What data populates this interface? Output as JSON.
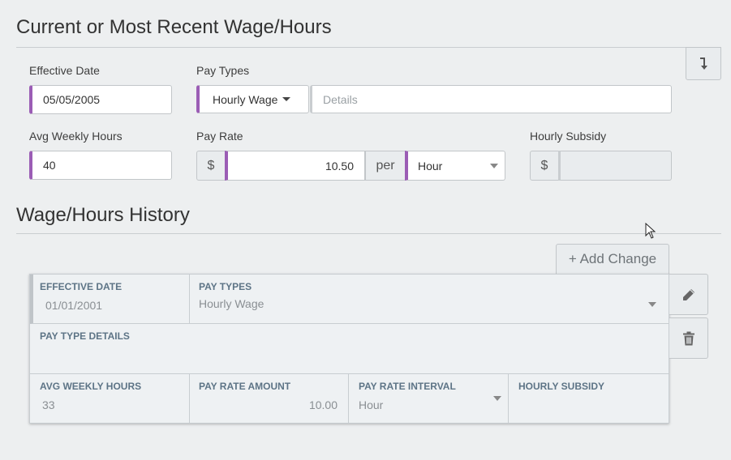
{
  "current": {
    "title": "Current or Most Recent Wage/Hours",
    "effective_date_label": "Effective Date",
    "effective_date_value": "05/05/2005",
    "pay_types_label": "Pay Types",
    "pay_type_selected": "Hourly Wage",
    "details_placeholder": "Details",
    "avg_weekly_hours_label": "Avg Weekly Hours",
    "avg_weekly_hours_value": "40",
    "pay_rate_label": "Pay Rate",
    "currency_symbol": "$",
    "pay_rate_value": "10.50",
    "per_label": "per",
    "interval_selected": "Hour",
    "hourly_subsidy_label": "Hourly Subsidy",
    "hourly_subsidy_currency": "$",
    "hourly_subsidy_value": ""
  },
  "history": {
    "title": "Wage/Hours History",
    "add_change_label": "+ Add Change",
    "record": {
      "effective_date_header": "EFFECTIVE DATE",
      "effective_date_value": "01/01/2001",
      "pay_types_header": "PAY TYPES",
      "pay_types_value": "Hourly Wage",
      "pay_type_details_header": "PAY TYPE DETAILS",
      "pay_type_details_value": "",
      "avg_weekly_hours_header": "AVG WEEKLY HOURS",
      "avg_weekly_hours_value": "33",
      "pay_rate_amount_header": "PAY RATE AMOUNT",
      "pay_rate_amount_value": "10.00",
      "pay_rate_interval_header": "PAY RATE INTERVAL",
      "pay_rate_interval_value": "Hour",
      "hourly_subsidy_header": "HOURLY SUBSIDY",
      "hourly_subsidy_value": ""
    }
  },
  "icons": {
    "collapse": "arrow-down-right-icon",
    "edit": "pencil-icon",
    "delete": "trash-icon",
    "cursor": "mouse-cursor-icon"
  },
  "colors": {
    "accent": "#9b5db5",
    "background": "#edeff0",
    "header_text": "#5d7486"
  }
}
